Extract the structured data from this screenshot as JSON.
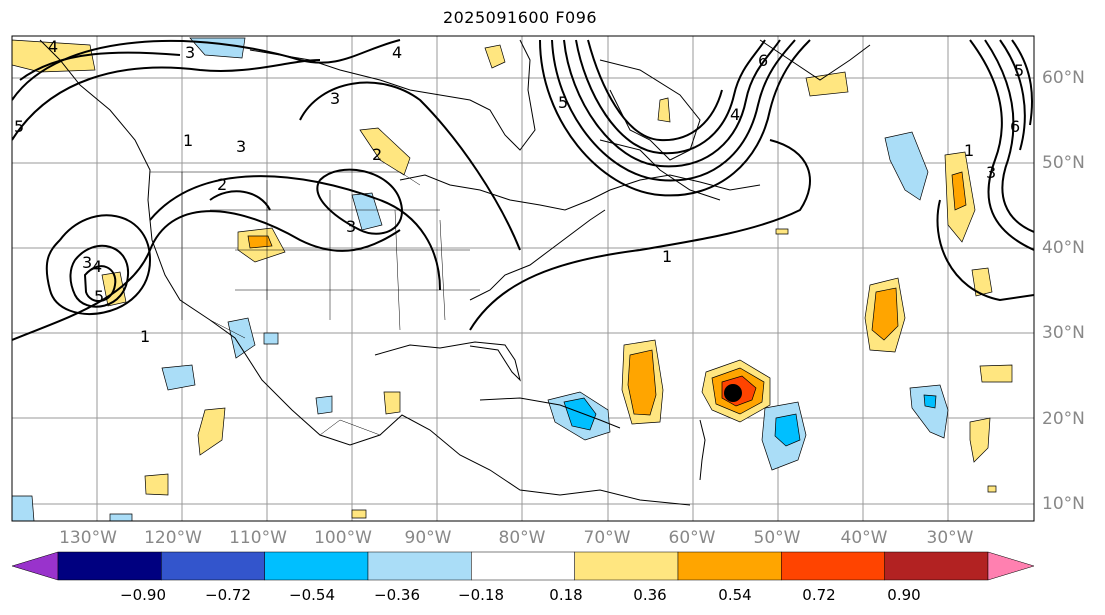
{
  "title": "2025091600 F096",
  "lon_labels": [
    "130°W",
    "120°W",
    "110°W",
    "100°W",
    "90°W",
    "80°W",
    "70°W",
    "60°W",
    "50°W",
    "40°W",
    "30°W"
  ],
  "lat_labels": [
    "60°N",
    "50°N",
    "40°N",
    "30°N",
    "20°N",
    "10°N"
  ],
  "colorbar": {
    "tick_labels": [
      "−0.90",
      "−0.72",
      "−0.54",
      "−0.36",
      "−0.18",
      "0.18",
      "0.36",
      "0.54",
      "0.72",
      "0.90"
    ],
    "colors": [
      "#9933cc",
      "#000080",
      "#3355cc",
      "#00bfff",
      "#aaddf7",
      "#ffffff",
      "#ffe680",
      "#ffa500",
      "#ff4400",
      "#b22222",
      "#ff80b0"
    ]
  },
  "contour_labels": [
    "3",
    "4",
    "4",
    "5",
    "1",
    "3",
    "2",
    "3",
    "4",
    "3",
    "5",
    "1",
    "1",
    "5",
    "4",
    "3",
    "2",
    "1",
    "6",
    "3",
    "5",
    "6"
  ],
  "marker": {
    "name": "storm-center",
    "color": "#000000"
  }
}
